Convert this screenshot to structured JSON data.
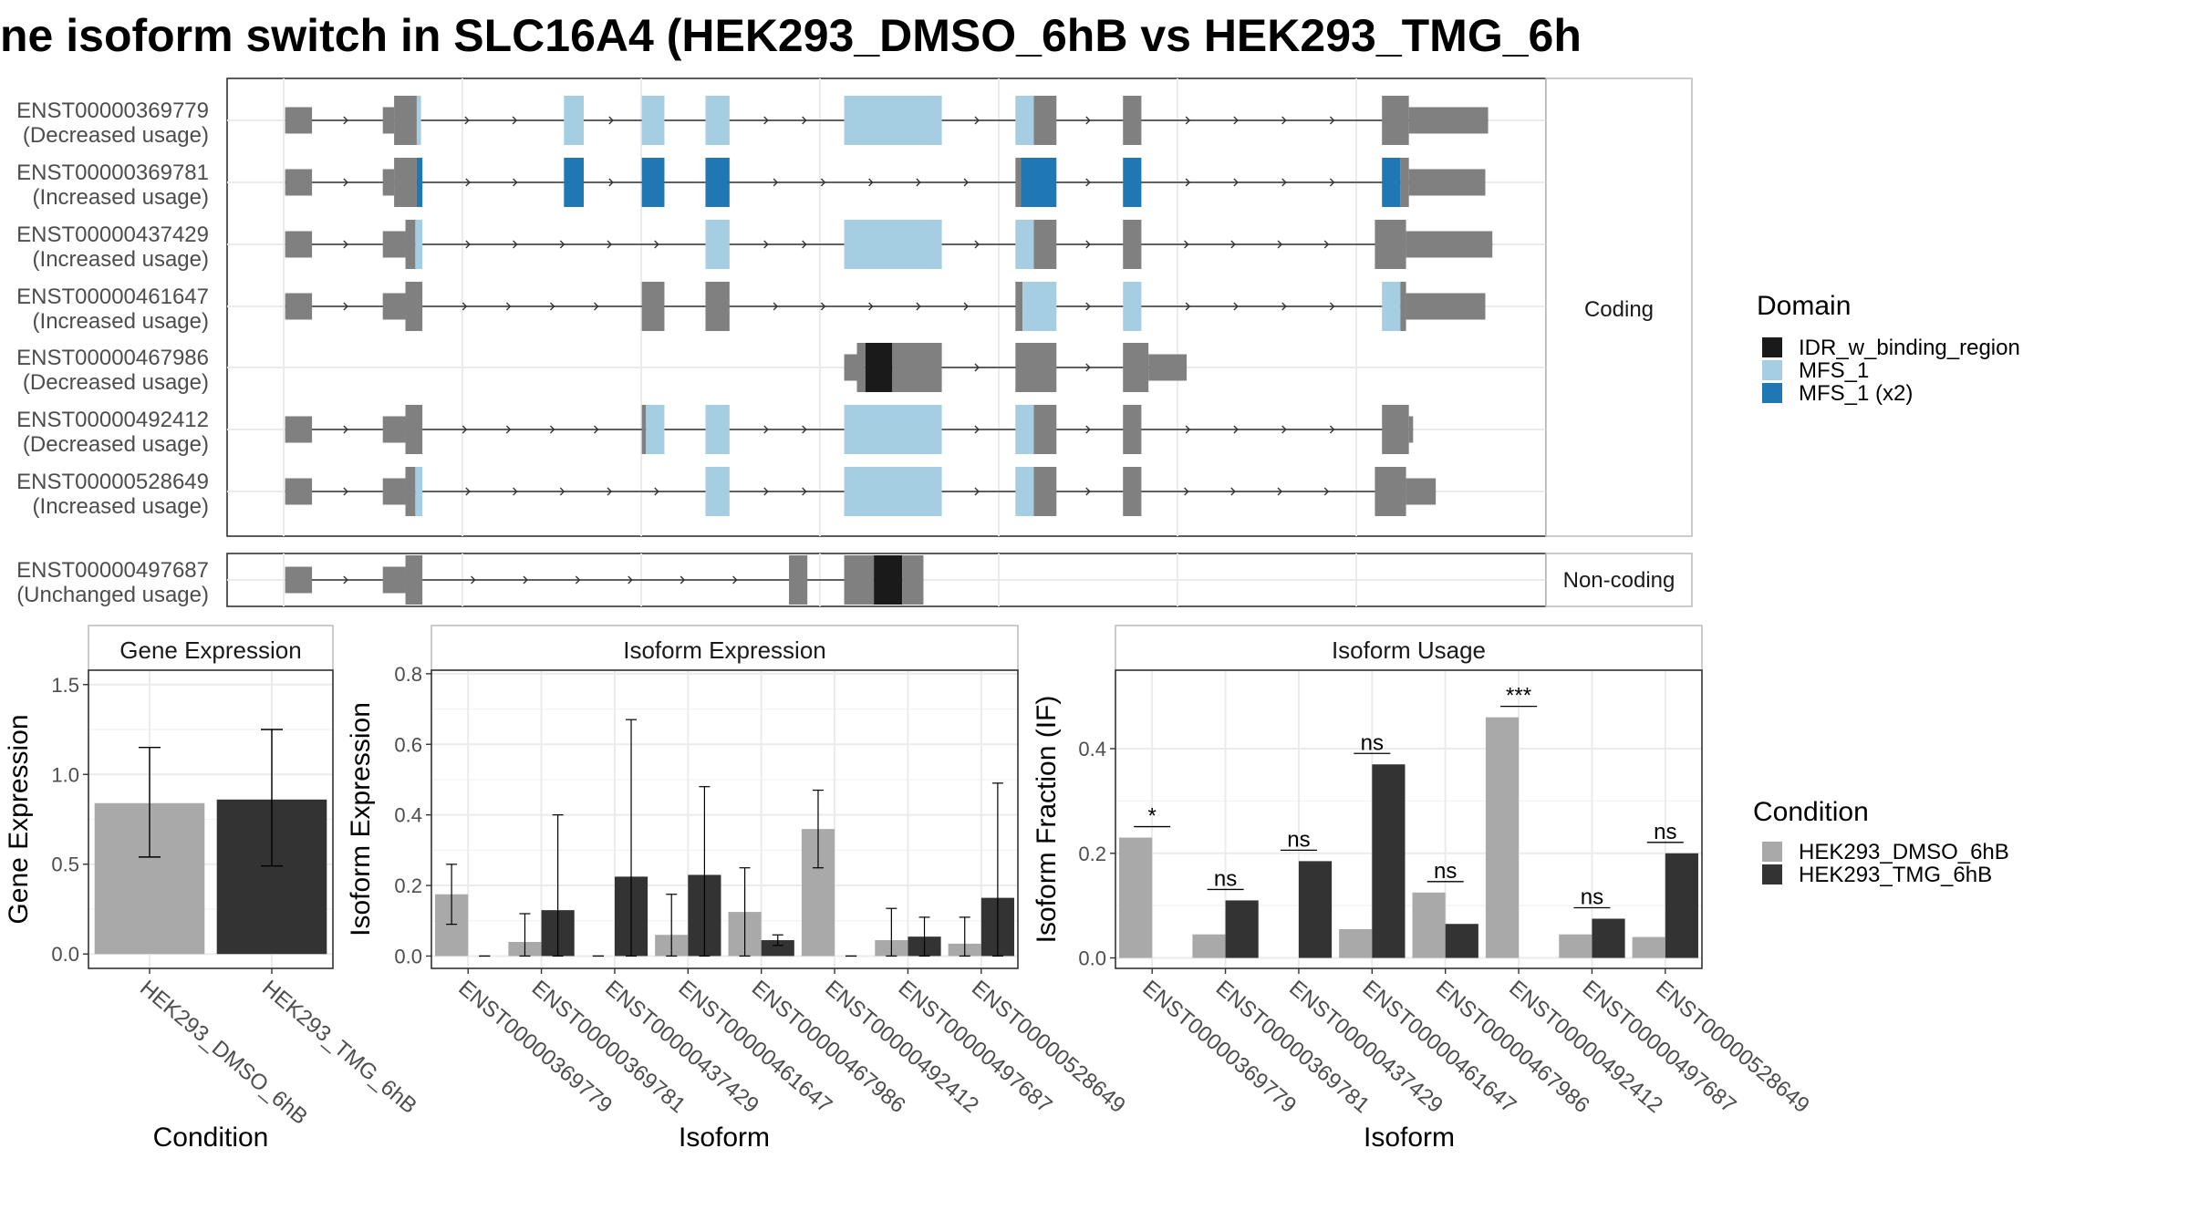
{
  "title": "ne isoform switch in SLC16A4 (HEK293_DMSO_6hB vs HEK293_TMG_6h",
  "colors": {
    "exon": "#808080",
    "idr": "#1a1a1a",
    "mfs": "#a6cee3",
    "mfs2": "#1f78b4",
    "dmso": "#a9a9a9",
    "tmg": "#333333"
  },
  "structure": {
    "coding_label": "Coding",
    "noncoding_label": "Non-coding",
    "coding_transcripts": [
      {
        "id": "ENST00000369779",
        "usage": "(Decreased usage)",
        "line": [
          203,
          1053
        ],
        "exons": [
          {
            "s": 203,
            "e": 222,
            "t": "utr",
            "c": "exon"
          },
          {
            "s": 272,
            "e": 280,
            "t": "utr",
            "c": "exon"
          },
          {
            "s": 280,
            "e": 296,
            "t": "cds",
            "c": "exon"
          },
          {
            "s": 296,
            "e": 299,
            "t": "cds",
            "c": "mfs"
          },
          {
            "s": 400,
            "e": 414,
            "t": "cds",
            "c": "mfs"
          },
          {
            "s": 455,
            "e": 471,
            "t": "cds",
            "c": "mfs"
          },
          {
            "s": 500,
            "e": 517,
            "t": "cds",
            "c": "mfs"
          },
          {
            "s": 598,
            "e": 667,
            "t": "cds",
            "c": "mfs"
          },
          {
            "s": 719,
            "e": 732,
            "t": "cds",
            "c": "mfs"
          },
          {
            "s": 732,
            "e": 748,
            "t": "cds",
            "c": "exon"
          },
          {
            "s": 795,
            "e": 808,
            "t": "cds",
            "c": "exon"
          },
          {
            "s": 978,
            "e": 997,
            "t": "cds",
            "c": "exon"
          },
          {
            "s": 997,
            "e": 1053,
            "t": "utr",
            "c": "exon"
          }
        ]
      },
      {
        "id": "ENST00000369781",
        "usage": "(Increased usage)",
        "line": [
          203,
          1051
        ],
        "exons": [
          {
            "s": 203,
            "e": 222,
            "t": "utr",
            "c": "exon"
          },
          {
            "s": 272,
            "e": 280,
            "t": "utr",
            "c": "exon"
          },
          {
            "s": 280,
            "e": 296,
            "t": "cds",
            "c": "exon"
          },
          {
            "s": 296,
            "e": 300,
            "t": "cds",
            "c": "mfs2"
          },
          {
            "s": 400,
            "e": 414,
            "t": "cds",
            "c": "mfs2"
          },
          {
            "s": 455,
            "e": 471,
            "t": "cds",
            "c": "mfs2"
          },
          {
            "s": 500,
            "e": 517,
            "t": "cds",
            "c": "mfs2"
          },
          {
            "s": 719,
            "e": 723,
            "t": "cds",
            "c": "exon"
          },
          {
            "s": 723,
            "e": 748,
            "t": "cds",
            "c": "mfs2"
          },
          {
            "s": 795,
            "e": 808,
            "t": "cds",
            "c": "mfs2"
          },
          {
            "s": 978,
            "e": 991,
            "t": "cds",
            "c": "mfs2"
          },
          {
            "s": 991,
            "e": 997,
            "t": "cds",
            "c": "exon"
          },
          {
            "s": 997,
            "e": 1051,
            "t": "utr",
            "c": "exon"
          }
        ]
      },
      {
        "id": "ENST00000437429",
        "usage": "(Increased usage)",
        "line": [
          203,
          1056
        ],
        "exons": [
          {
            "s": 203,
            "e": 222,
            "t": "utr",
            "c": "exon"
          },
          {
            "s": 272,
            "e": 288,
            "t": "utr",
            "c": "exon"
          },
          {
            "s": 288,
            "e": 295,
            "t": "cds",
            "c": "exon"
          },
          {
            "s": 295,
            "e": 300,
            "t": "cds",
            "c": "mfs"
          },
          {
            "s": 500,
            "e": 517,
            "t": "cds",
            "c": "mfs"
          },
          {
            "s": 598,
            "e": 667,
            "t": "cds",
            "c": "mfs"
          },
          {
            "s": 719,
            "e": 732,
            "t": "cds",
            "c": "mfs"
          },
          {
            "s": 732,
            "e": 748,
            "t": "cds",
            "c": "exon"
          },
          {
            "s": 795,
            "e": 808,
            "t": "cds",
            "c": "exon"
          },
          {
            "s": 973,
            "e": 995,
            "t": "cds",
            "c": "exon"
          },
          {
            "s": 995,
            "e": 1056,
            "t": "utr",
            "c": "exon"
          }
        ]
      },
      {
        "id": "ENST00000461647",
        "usage": "(Increased usage)",
        "line": [
          203,
          1051
        ],
        "exons": [
          {
            "s": 203,
            "e": 222,
            "t": "utr",
            "c": "exon"
          },
          {
            "s": 272,
            "e": 288,
            "t": "utr",
            "c": "exon"
          },
          {
            "s": 288,
            "e": 300,
            "t": "cds",
            "c": "exon"
          },
          {
            "s": 455,
            "e": 471,
            "t": "cds",
            "c": "exon"
          },
          {
            "s": 500,
            "e": 517,
            "t": "cds",
            "c": "exon"
          },
          {
            "s": 719,
            "e": 724,
            "t": "cds",
            "c": "exon"
          },
          {
            "s": 724,
            "e": 748,
            "t": "cds",
            "c": "mfs"
          },
          {
            "s": 795,
            "e": 808,
            "t": "cds",
            "c": "mfs"
          },
          {
            "s": 978,
            "e": 991,
            "t": "cds",
            "c": "mfs"
          },
          {
            "s": 991,
            "e": 995,
            "t": "cds",
            "c": "exon"
          },
          {
            "s": 995,
            "e": 1051,
            "t": "utr",
            "c": "exon"
          }
        ]
      },
      {
        "id": "ENST00000467986",
        "usage": "(Decreased usage)",
        "line": [
          598,
          840
        ],
        "exons": [
          {
            "s": 598,
            "e": 607,
            "t": "utr",
            "c": "exon"
          },
          {
            "s": 607,
            "e": 613,
            "t": "cds",
            "c": "exon"
          },
          {
            "s": 613,
            "e": 632,
            "t": "cds",
            "c": "idr"
          },
          {
            "s": 632,
            "e": 667,
            "t": "cds",
            "c": "exon"
          },
          {
            "s": 719,
            "e": 748,
            "t": "cds",
            "c": "exon"
          },
          {
            "s": 795,
            "e": 813,
            "t": "cds",
            "c": "exon"
          },
          {
            "s": 813,
            "e": 840,
            "t": "utr",
            "c": "exon"
          }
        ]
      },
      {
        "id": "ENST00000492412",
        "usage": "(Decreased usage)",
        "line": [
          203,
          1000
        ],
        "exons": [
          {
            "s": 203,
            "e": 222,
            "t": "utr",
            "c": "exon"
          },
          {
            "s": 272,
            "e": 288,
            "t": "utr",
            "c": "exon"
          },
          {
            "s": 288,
            "e": 300,
            "t": "cds",
            "c": "exon"
          },
          {
            "s": 455,
            "e": 458,
            "t": "cds",
            "c": "exon"
          },
          {
            "s": 458,
            "e": 471,
            "t": "cds",
            "c": "mfs"
          },
          {
            "s": 500,
            "e": 517,
            "t": "cds",
            "c": "mfs"
          },
          {
            "s": 598,
            "e": 667,
            "t": "cds",
            "c": "mfs"
          },
          {
            "s": 719,
            "e": 732,
            "t": "cds",
            "c": "mfs"
          },
          {
            "s": 732,
            "e": 748,
            "t": "cds",
            "c": "exon"
          },
          {
            "s": 795,
            "e": 808,
            "t": "cds",
            "c": "exon"
          },
          {
            "s": 978,
            "e": 997,
            "t": "cds",
            "c": "exon"
          },
          {
            "s": 997,
            "e": 1000,
            "t": "utr",
            "c": "exon"
          }
        ]
      },
      {
        "id": "ENST00000528649",
        "usage": "(Increased usage)",
        "line": [
          203,
          1016
        ],
        "exons": [
          {
            "s": 203,
            "e": 222,
            "t": "utr",
            "c": "exon"
          },
          {
            "s": 272,
            "e": 288,
            "t": "utr",
            "c": "exon"
          },
          {
            "s": 288,
            "e": 295,
            "t": "cds",
            "c": "exon"
          },
          {
            "s": 295,
            "e": 300,
            "t": "cds",
            "c": "mfs"
          },
          {
            "s": 500,
            "e": 517,
            "t": "cds",
            "c": "mfs"
          },
          {
            "s": 598,
            "e": 667,
            "t": "cds",
            "c": "mfs"
          },
          {
            "s": 719,
            "e": 732,
            "t": "cds",
            "c": "mfs"
          },
          {
            "s": 732,
            "e": 748,
            "t": "cds",
            "c": "exon"
          },
          {
            "s": 795,
            "e": 808,
            "t": "cds",
            "c": "exon"
          },
          {
            "s": 973,
            "e": 995,
            "t": "cds",
            "c": "exon"
          },
          {
            "s": 995,
            "e": 1016,
            "t": "utr",
            "c": "exon"
          }
        ]
      }
    ],
    "noncoding_transcripts": [
      {
        "id": "ENST00000497687",
        "usage": "(Unchanged usage)",
        "line": [
          203,
          654
        ],
        "exons": [
          {
            "s": 203,
            "e": 222,
            "t": "utr",
            "c": "exon"
          },
          {
            "s": 272,
            "e": 288,
            "t": "utr",
            "c": "exon"
          },
          {
            "s": 288,
            "e": 300,
            "t": "cds",
            "c": "exon"
          },
          {
            "s": 559,
            "e": 572,
            "t": "cds",
            "c": "exon"
          },
          {
            "s": 598,
            "e": 619,
            "t": "cds",
            "c": "exon"
          },
          {
            "s": 619,
            "e": 639,
            "t": "cds",
            "c": "idr"
          },
          {
            "s": 639,
            "e": 654,
            "t": "cds",
            "c": "exon"
          }
        ]
      }
    ]
  },
  "legend_domain": {
    "title": "Domain",
    "items": [
      {
        "label": "IDR_w_binding_region",
        "color": "#1a1a1a"
      },
      {
        "label": "MFS_1",
        "color": "#a6cee3"
      },
      {
        "label": "MFS_1 (x2)",
        "color": "#1f78b4"
      }
    ]
  },
  "legend_condition": {
    "title": "Condition",
    "items": [
      {
        "label": "HEK293_DMSO_6hB",
        "color": "#a9a9a9"
      },
      {
        "label": "HEK293_TMG_6hB",
        "color": "#333333"
      }
    ]
  },
  "chart_data": [
    {
      "type": "bar",
      "title": "Gene Expression",
      "xlabel": "Condition",
      "ylabel": "Gene Expression",
      "categories": [
        "HEK293_DMSO_6hB",
        "HEK293_TMG_6hB"
      ],
      "values": [
        0.84,
        0.86
      ],
      "errors": [
        [
          0.54,
          1.15
        ],
        [
          0.49,
          1.25
        ]
      ],
      "ylim": [
        -0.08,
        1.58
      ],
      "yticks": [
        0.0,
        0.5,
        1.0,
        1.5
      ],
      "ytick_labels": [
        "0.0",
        "0.5",
        "1.0",
        "1.5"
      ]
    },
    {
      "type": "bar",
      "title": "Isoform Expression",
      "xlabel": "Isoform",
      "ylabel": "Isoform Expression",
      "categories": [
        "ENST00000369779",
        "ENST00000369781",
        "ENST00000437429",
        "ENST00000461647",
        "ENST00000467986",
        "ENST00000492412",
        "ENST00000497687",
        "ENST00000528649"
      ],
      "series": [
        {
          "name": "HEK293_DMSO_6hB",
          "values": [
            0.175,
            0.04,
            0.0,
            0.06,
            0.125,
            0.36,
            0.045,
            0.035
          ],
          "errors": [
            [
              0.09,
              0.26
            ],
            [
              0.0,
              0.12
            ],
            [
              0.0,
              0.0
            ],
            [
              0.0,
              0.175
            ],
            [
              0.0,
              0.25
            ],
            [
              0.25,
              0.47
            ],
            [
              0.0,
              0.135
            ],
            [
              0.0,
              0.11
            ]
          ]
        },
        {
          "name": "HEK293_TMG_6hB",
          "values": [
            0.0,
            0.13,
            0.225,
            0.23,
            0.045,
            0.0,
            0.055,
            0.165
          ],
          "errors": [
            [
              0.0,
              0.0
            ],
            [
              0.0,
              0.4
            ],
            [
              0.0,
              0.67
            ],
            [
              0.0,
              0.48
            ],
            [
              0.03,
              0.06
            ],
            [
              0.0,
              0.0
            ],
            [
              0.0,
              0.11
            ],
            [
              0.0,
              0.49
            ]
          ]
        }
      ],
      "ylim": [
        -0.035,
        0.81
      ],
      "yticks": [
        0.0,
        0.2,
        0.4,
        0.6,
        0.8
      ],
      "ytick_labels": [
        "0.0",
        "0.2",
        "0.4",
        "0.6",
        "0.8"
      ]
    },
    {
      "type": "bar",
      "title": "Isoform Usage",
      "xlabel": "Isoform",
      "ylabel": "Isoform Fraction (IF)",
      "categories": [
        "ENST00000369779",
        "ENST00000369781",
        "ENST00000437429",
        "ENST00000461647",
        "ENST00000467986",
        "ENST00000492412",
        "ENST00000497687",
        "ENST00000528649"
      ],
      "series": [
        {
          "name": "HEK293_DMSO_6hB",
          "values": [
            0.23,
            0.045,
            0.0,
            0.055,
            0.125,
            0.46,
            0.045,
            0.04
          ]
        },
        {
          "name": "HEK293_TMG_6hB",
          "values": [
            0.0,
            0.11,
            0.185,
            0.37,
            0.065,
            0.0,
            0.075,
            0.2
          ]
        }
      ],
      "significance": [
        "*",
        "ns",
        "ns",
        "ns",
        "ns",
        "***",
        "ns",
        "ns"
      ],
      "ylim": [
        -0.02,
        0.55
      ],
      "yticks": [
        0.0,
        0.2,
        0.4
      ],
      "ytick_labels": [
        "0.0",
        "0.2",
        "0.4"
      ]
    }
  ]
}
